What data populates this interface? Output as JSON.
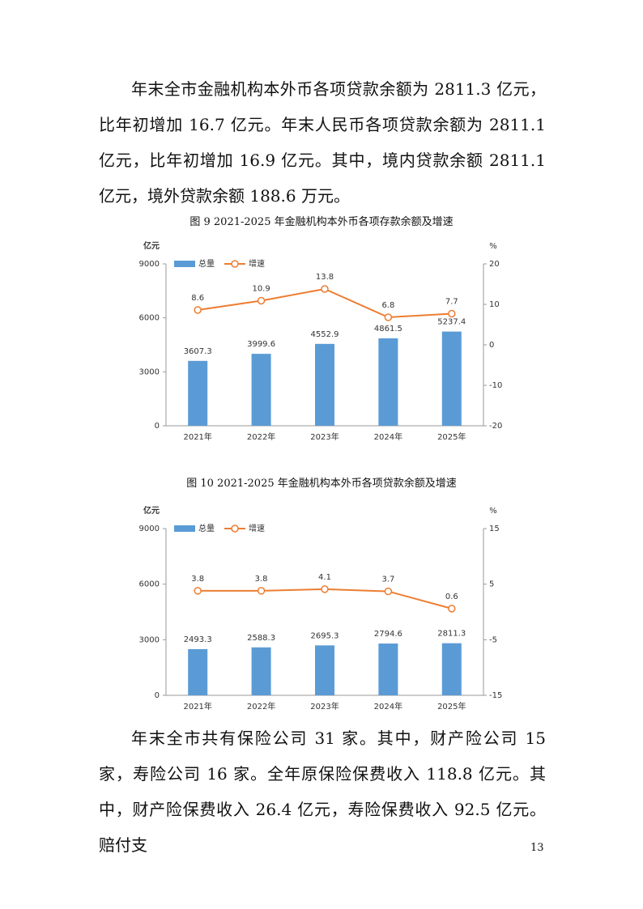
{
  "paragraphs": [
    "年末全市金融机构本外币各项贷款余额为 2811.3 亿元，比年初增加 16.7 亿元。年末人民币各项贷款余额为 2811.1 亿元，比年初增加 16.9 亿元。其中，境内贷款余额 2811.1 亿元，境外贷款余额 188.6 万元。",
    "年末全市共有保险公司 31 家。其中，财产险公司 15 家，寿险公司 16 家。全年原保险保费收入 118.8 亿元。其中，财产险保费收入 26.4 亿元，寿险保费收入 92.5 亿元。赔付支"
  ],
  "page_number": "13",
  "chart_data": [
    {
      "type": "bar-line",
      "title": "图 9 2021-2025 年金融机构本外币各项存款余额及增速",
      "y_label": "亿元",
      "y2_label": "%",
      "categories": [
        "2021年",
        "2022年",
        "2023年",
        "2024年",
        "2025年"
      ],
      "series": [
        {
          "name": "总量",
          "type": "bar",
          "color": "#5b9bd5",
          "axis": "y",
          "values": [
            3607.3,
            3999.6,
            4552.9,
            4861.5,
            5237.4
          ]
        },
        {
          "name": "增速",
          "type": "line",
          "color": "#ed7d31",
          "axis": "y2",
          "values": [
            8.6,
            10.9,
            13.8,
            6.8,
            7.7
          ]
        }
      ],
      "ylim": [
        0,
        9000
      ],
      "yticks": [
        0,
        3000,
        6000,
        9000
      ],
      "y2lim": [
        -20,
        20
      ],
      "y2ticks": [
        -20,
        -10,
        0,
        10,
        20
      ],
      "legend": "top-left"
    },
    {
      "type": "bar-line",
      "title": "图 10 2021-2025 年金融机构本外币各项贷款余额及增速",
      "y_label": "亿元",
      "y2_label": "%",
      "categories": [
        "2021年",
        "2022年",
        "2023年",
        "2024年",
        "2025年"
      ],
      "series": [
        {
          "name": "总量",
          "type": "bar",
          "color": "#5b9bd5",
          "axis": "y",
          "values": [
            2493.3,
            2588.3,
            2695.3,
            2794.6,
            2811.3
          ]
        },
        {
          "name": "增速",
          "type": "line",
          "color": "#ed7d31",
          "axis": "y2",
          "values": [
            3.8,
            3.8,
            4.1,
            3.7,
            0.6
          ]
        }
      ],
      "ylim": [
        0,
        9000
      ],
      "yticks": [
        0,
        3000,
        6000,
        9000
      ],
      "y2lim": [
        -15,
        15
      ],
      "y2ticks": [
        -15,
        -5,
        5,
        15
      ],
      "legend": "top-left"
    }
  ]
}
